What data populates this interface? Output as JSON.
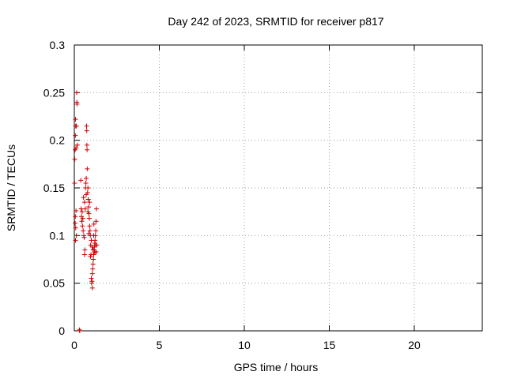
{
  "chart_data": {
    "type": "scatter",
    "title": "Day 242 of 2023, SRMTID for receiver p817",
    "xlabel": "GPS time / hours",
    "ylabel": "SRMTID / TECUs",
    "xlim": [
      0,
      24
    ],
    "ylim": [
      0,
      0.3
    ],
    "xticks": [
      0,
      5,
      10,
      15,
      20
    ],
    "yticks": [
      0,
      0.05,
      0.1,
      0.15,
      0.2,
      0.25,
      0.3
    ],
    "xtick_labels": [
      "0",
      "5",
      "10",
      "15",
      "20"
    ],
    "ytick_labels": [
      "0",
      "0.05",
      "0.1",
      "0.15",
      "0.2",
      "0.25",
      "0.3"
    ],
    "grid": true,
    "marker": "plus",
    "marker_color": "#cc0000",
    "series": [
      {
        "points": [
          [
            0.02,
            0.155
          ],
          [
            0.03,
            0.18
          ],
          [
            0.05,
            0.19
          ],
          [
            0.06,
            0.205
          ],
          [
            0.07,
            0.222
          ],
          [
            0.08,
            0.215
          ],
          [
            0.1,
            0.192
          ],
          [
            0.12,
            0.215
          ],
          [
            0.14,
            0.25
          ],
          [
            0.15,
            0.24
          ],
          [
            0.16,
            0.238
          ],
          [
            0.18,
            0.195
          ],
          [
            0.05,
            0.113
          ],
          [
            0.06,
            0.12
          ],
          [
            0.07,
            0.095
          ],
          [
            0.08,
            0.108
          ],
          [
            0.1,
            0.126
          ],
          [
            0.12,
            0.1
          ],
          [
            0.3,
            0.001
          ],
          [
            0.32,
            0.0
          ],
          [
            0.38,
            0.158
          ],
          [
            0.4,
            0.128
          ],
          [
            0.42,
            0.12
          ],
          [
            0.44,
            0.115
          ],
          [
            0.46,
            0.125
          ],
          [
            0.48,
            0.11
          ],
          [
            0.5,
            0.118
          ],
          [
            0.52,
            0.105
          ],
          [
            0.54,
            0.14
          ],
          [
            0.56,
            0.1
          ],
          [
            0.58,
            0.098
          ],
          [
            0.6,
            0.08
          ],
          [
            0.62,
            0.085
          ],
          [
            0.64,
            0.128
          ],
          [
            0.66,
            0.15
          ],
          [
            0.68,
            0.155
          ],
          [
            0.7,
            0.16
          ],
          [
            0.72,
            0.215
          ],
          [
            0.73,
            0.21
          ],
          [
            0.74,
            0.195
          ],
          [
            0.75,
            0.19
          ],
          [
            0.76,
            0.17
          ],
          [
            0.78,
            0.145
          ],
          [
            0.8,
            0.15
          ],
          [
            0.82,
            0.138
          ],
          [
            0.84,
            0.13
          ],
          [
            0.86,
            0.123
          ],
          [
            0.88,
            0.118
          ],
          [
            0.9,
            0.11
          ],
          [
            0.92,
            0.105
          ],
          [
            0.94,
            0.1
          ],
          [
            0.96,
            0.09
          ],
          [
            0.98,
            0.08
          ],
          [
            1.0,
            0.055
          ],
          [
            1.02,
            0.05
          ],
          [
            1.04,
            0.052
          ],
          [
            1.06,
            0.06
          ],
          [
            1.08,
            0.065
          ],
          [
            1.1,
            0.07
          ],
          [
            1.12,
            0.075
          ],
          [
            1.14,
            0.08
          ],
          [
            1.16,
            0.085
          ],
          [
            1.18,
            0.088
          ],
          [
            1.2,
            0.092
          ],
          [
            1.22,
            0.095
          ],
          [
            1.24,
            0.1
          ],
          [
            1.26,
            0.105
          ],
          [
            1.28,
            0.115
          ],
          [
            1.3,
            0.128
          ],
          [
            1.32,
            0.09
          ],
          [
            1.06,
            0.045
          ],
          [
            1.1,
            0.085
          ],
          [
            1.14,
            0.1
          ],
          [
            1.2,
            0.082
          ],
          [
            0.9,
            0.135
          ],
          [
            0.7,
            0.143
          ],
          [
            0.8,
            0.125
          ],
          [
            1.0,
            0.095
          ],
          [
            0.6,
            0.135
          ],
          [
            0.95,
            0.078
          ],
          [
            1.05,
            0.088
          ],
          [
            1.25,
            0.09
          ],
          [
            1.15,
            0.112
          ],
          [
            1.28,
            0.083
          ],
          [
            0.85,
            0.102
          ]
        ]
      }
    ]
  }
}
